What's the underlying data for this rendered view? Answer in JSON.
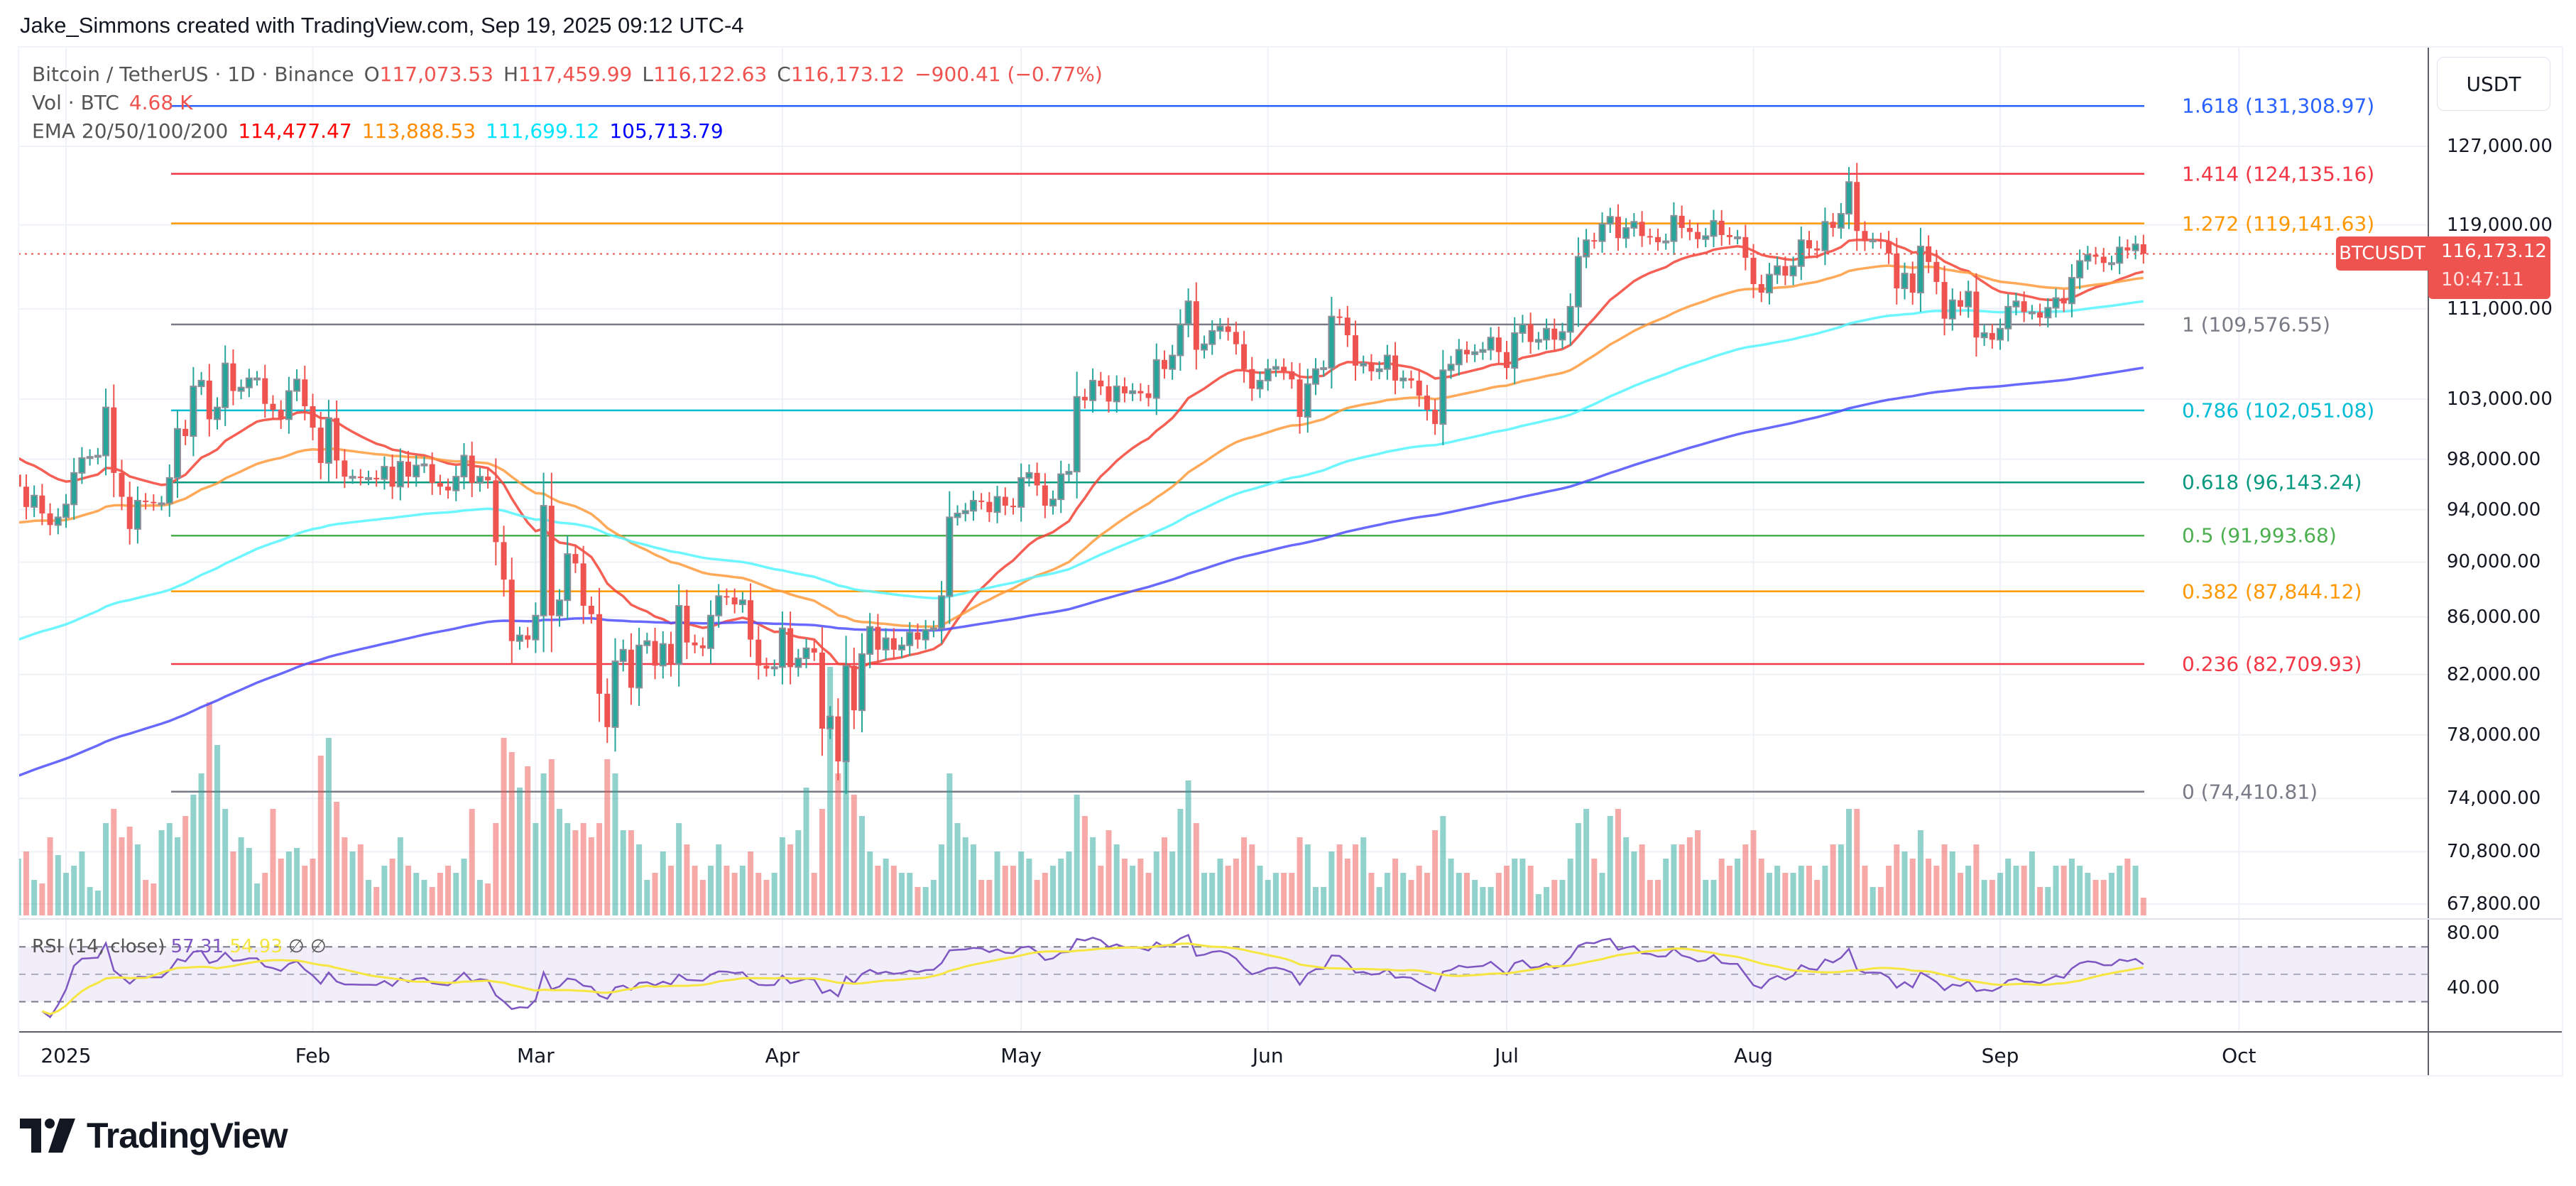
{
  "header": {
    "attribution": "Jake_Simmons created with TradingView.com, Sep 19, 2025 09:12 UTC-4"
  },
  "legend": {
    "symbol": "Bitcoin / TetherUS · 1D · Binance",
    "o_label": "O",
    "o": "117,073.53",
    "h_label": "H",
    "h": "117,459.99",
    "l_label": "L",
    "l": "116,122.63",
    "c_label": "C",
    "c": "116,173.12",
    "change": "−900.41 (−0.77%)",
    "vol_label": "Vol · BTC",
    "vol": "4.68 K",
    "ema_label": "EMA 20/50/100/200",
    "ema_values": [
      "114,477.47",
      "113,888.53",
      "111,699.12",
      "105,713.79"
    ]
  },
  "rsi": {
    "label": "RSI (14, close)",
    "value": "57.31",
    "ma": "54.93",
    "extra1": "∅",
    "extra2": "∅"
  },
  "price_axis": {
    "currency": "USDT",
    "ticks": [
      "127,000.00",
      "119,000.00",
      "111,000.00",
      "103,000.00",
      "98,000.00",
      "94,000.00",
      "90,000.00",
      "86,000.00",
      "82,000.00",
      "78,000.00",
      "74,000.00",
      "70,800.00",
      "67,800.00"
    ],
    "symbol_tag": "BTCUSDT",
    "last_price": "116,173.12",
    "countdown": "10:47:11"
  },
  "rsi_axis": [
    "80.00",
    "40.00"
  ],
  "time_axis": [
    "2025",
    "Feb",
    "Mar",
    "Apr",
    "May",
    "Jun",
    "Jul",
    "Aug",
    "Sep",
    "Oct"
  ],
  "fib_levels": [
    {
      "label": "1.618 (131,308.97)",
      "price": 131308.97,
      "color": "#2962ff"
    },
    {
      "label": "1.414 (124,135.16)",
      "price": 124135.16,
      "color": "#f23645"
    },
    {
      "label": "1.272 (119,141.63)",
      "price": 119141.63,
      "color": "#ff9800"
    },
    {
      "label": "1 (109,576.55)",
      "price": 109576.55,
      "color": "#787b86"
    },
    {
      "label": "0.786 (102,051.08)",
      "price": 102051.08,
      "color": "#00bcd4"
    },
    {
      "label": "0.618 (96,143.24)",
      "price": 96143.24,
      "color": "#089981"
    },
    {
      "label": "0.5 (91,993.68)",
      "price": 91993.68,
      "color": "#4caf50"
    },
    {
      "label": "0.382 (87,844.12)",
      "price": 87844.12,
      "color": "#ff9800"
    },
    {
      "label": "0.236 (82,709.93)",
      "price": 82709.93,
      "color": "#f23645"
    },
    {
      "label": "0 (74,410.81)",
      "price": 74410.81,
      "color": "#787b86"
    }
  ],
  "colors": {
    "up": "#26a69a",
    "down": "#ef5350",
    "up_border": "#8a8f98",
    "ema20": "#f44336",
    "ema50": "#ff9a3c",
    "ema100": "#55f5ff",
    "ema200": "#4f4fff",
    "rsi": "#7e57c2",
    "rsi_ma": "#f5e642",
    "legend_ema": [
      "#ff0000",
      "#ff8c00",
      "#00ffff",
      "#0000ff"
    ]
  },
  "logo": "TradingView",
  "chart_data": {
    "type": "candlestick",
    "symbol": "BTCUSDT",
    "interval": "1D",
    "y_scale": "log",
    "closes_by_month": {
      "2024-12": [
        95800,
        94200,
        95100,
        93700,
        92800,
        93400
      ],
      "2025-01": [
        94400,
        96900,
        98100,
        98200,
        98300,
        102300,
        96900,
        95000,
        92500,
        94700,
        94600,
        94500,
        94500,
        96500,
        100500,
        99900,
        104100,
        104600,
        101300,
        102300,
        106100,
        103700,
        104000,
        104800,
        104800,
        102600,
        102100,
        101300,
        103700,
        104700,
        102400
      ],
      "2025-02": [
        100600,
        97700,
        101400,
        97900,
        96600,
        96600,
        96500,
        96500,
        96400,
        97400,
        95800,
        97800,
        96600,
        97500,
        97600,
        96100,
        95800,
        95500,
        96600,
        98300,
        96100,
        96600,
        96300,
        91500,
        88700,
        84300,
        84700,
        84400
      ],
      "2025-03": [
        86100,
        94300,
        86100,
        87200,
        90600,
        89900,
        86800,
        86200,
        80700,
        78500,
        82900,
        83700,
        81100,
        84000,
        84300,
        82600,
        84100,
        82700,
        86800,
        84200,
        84000,
        83800,
        86100,
        87500,
        87400,
        86900,
        87200,
        84400,
        82600,
        82400,
        82500
      ],
      "2025-04": [
        85200,
        82500,
        83100,
        83800,
        83500,
        78400,
        79200,
        76300,
        82600,
        79600,
        83400,
        85300,
        83700,
        84500,
        83700,
        84000,
        84900,
        84400,
        85100,
        85200,
        87500,
        93400,
        93700,
        93900,
        94700,
        94600,
        93800,
        95000,
        94300,
        94200
      ],
      "2025-05": [
        96500,
        96900,
        95900,
        94300,
        94800,
        96800,
        97000,
        103200,
        102900,
        104600,
        104100,
        102800,
        104100,
        103500,
        103700,
        103500,
        103100,
        106400,
        105600,
        106800,
        109600,
        111700,
        107300,
        107800,
        109000,
        109400,
        108900,
        107800,
        105600,
        103900,
        104600
      ],
      "2025-06": [
        105600,
        105800,
        105400,
        104700,
        101500,
        104300,
        105600,
        105700,
        110300,
        110200,
        108600,
        105900,
        106100,
        105400,
        105600,
        106800,
        104600,
        104800,
        104600,
        103300,
        102100,
        100900,
        105500,
        106000,
        107300,
        106900,
        107100,
        107300,
        108400,
        107100
      ],
      "2025-07": [
        105700,
        108800,
        109600,
        108000,
        108200,
        109200,
        108200,
        108900,
        111200,
        115900,
        117500,
        117400,
        119100,
        119800,
        117700,
        118700,
        119300,
        117900,
        117800,
        117300,
        117400,
        119900,
        118700,
        118300,
        117600,
        117900,
        119400,
        118000,
        117800,
        117800,
        115800
      ],
      "2025-08": [
        113300,
        112500,
        114200,
        115000,
        114100,
        115000,
        117500,
        116700,
        116500,
        119300,
        118700,
        120100,
        123300,
        118400,
        117400,
        117500,
        117400,
        116200,
        112900,
        114300,
        112500,
        116900,
        115400,
        113500,
        110100,
        111800,
        111200,
        112600,
        108400,
        108800,
        108200
      ],
      "2025-09": [
        109200,
        111200,
        111700,
        110700,
        110700,
        110200,
        111100,
        112000,
        111500,
        113900,
        115500,
        116100,
        115900,
        115300,
        115300,
        116800,
        116500,
        117100,
        116173.12
      ]
    },
    "volume_k_by_month": {
      "2024-12": [
        16,
        18,
        10,
        9,
        22,
        17
      ],
      "2025-01": [
        12,
        14,
        18,
        8,
        7,
        26,
        30,
        22,
        25,
        20,
        10,
        9,
        24,
        26,
        22,
        28,
        34,
        40,
        60,
        48,
        30,
        18,
        22,
        19,
        9,
        12,
        30,
        16,
        18,
        19,
        14
      ],
      "2025-02": [
        16,
        45,
        50,
        32,
        22,
        18,
        20,
        10,
        8,
        14,
        16,
        22,
        14,
        12,
        10,
        8,
        12,
        14,
        12,
        16,
        30,
        10,
        9,
        26,
        50,
        46,
        36,
        42
      ],
      "2025-03": [
        26,
        40,
        44,
        30,
        26,
        24,
        26,
        22,
        26,
        44,
        40,
        24,
        24,
        20,
        10,
        12,
        18,
        14,
        26,
        20,
        14,
        10,
        14,
        20,
        14,
        12,
        14,
        18,
        12,
        10,
        12
      ],
      "2025-04": [
        22,
        20,
        24,
        36,
        12,
        30,
        70,
        40,
        60,
        34,
        28,
        18,
        14,
        16,
        14,
        12,
        12,
        8,
        8,
        10,
        20,
        40,
        26,
        22,
        20,
        10,
        10,
        18,
        14,
        14
      ],
      "2025-05": [
        18,
        16,
        10,
        12,
        14,
        16,
        18,
        34,
        28,
        22,
        14,
        24,
        20,
        16,
        14,
        16,
        12,
        18,
        22,
        18,
        30,
        38,
        26,
        12,
        12,
        16,
        14,
        16,
        22,
        20,
        14
      ],
      "2025-06": [
        10,
        12,
        12,
        12,
        22,
        20,
        8,
        8,
        18,
        20,
        16,
        20,
        22,
        12,
        8,
        12,
        16,
        12,
        10,
        14,
        12,
        24,
        28,
        16,
        12,
        12,
        10,
        8,
        8,
        12
      ],
      "2025-07": [
        14,
        16,
        16,
        14,
        6,
        8,
        10,
        10,
        16,
        26,
        30,
        16,
        12,
        28,
        30,
        22,
        18,
        20,
        10,
        10,
        16,
        20,
        20,
        22,
        24,
        10,
        10,
        16,
        14,
        16,
        20
      ],
      "2025-08": [
        24,
        16,
        12,
        14,
        12,
        12,
        14,
        14,
        10,
        14,
        20,
        20,
        30,
        30,
        14,
        8,
        8,
        14,
        20,
        18,
        16,
        24,
        16,
        14,
        20,
        18,
        12,
        14,
        20,
        10,
        10
      ],
      "2025-09": [
        12,
        16,
        14,
        14,
        18,
        8,
        8,
        14,
        14,
        16,
        14,
        12,
        10,
        10,
        12,
        14,
        16,
        14,
        5
      ]
    },
    "ema_periods": [
      20,
      50,
      100,
      200
    ],
    "rsi_period": 14,
    "rsi_bands": [
      70,
      50,
      30
    ],
    "y_range": [
      67800,
      131308.97
    ]
  }
}
